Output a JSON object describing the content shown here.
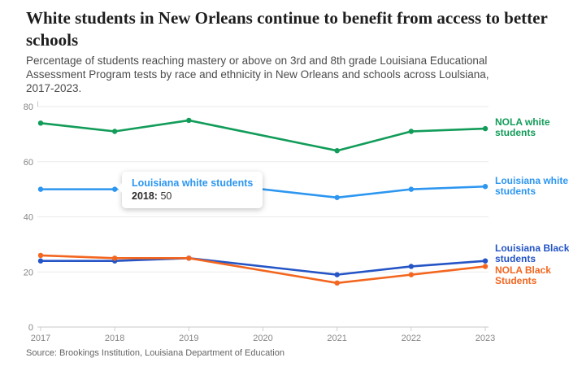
{
  "header": {
    "title": "White students in New Orleans continue to benefit from access to better schools",
    "subtitle": "Percentage of students reaching mastery or above on 3rd and 8th grade Louisiana Educational Assessment Program tests by race and ethnicity in New Orleans and schools across Loulsiana, 2017-2023."
  },
  "tooltip": {
    "series": "Louisiana white students",
    "year": "2018:",
    "value": "50"
  },
  "source": "Source: Brookings Institution, Louisiana Department of Education",
  "chart_data": {
    "type": "line",
    "title": "White students in New Orleans continue to benefit from access to better schools",
    "x": [
      2017,
      2018,
      2019,
      2021,
      2022,
      2023
    ],
    "x_ticks": [
      2017,
      2018,
      2019,
      2020,
      2021,
      2022,
      2023
    ],
    "y_ticks": [
      0,
      20,
      40,
      60,
      80
    ],
    "ylim": [
      0,
      80
    ],
    "grid": true,
    "legend_position": "right-edge-labels",
    "note_2020": "no data points plotted for 2020; lines interpolate across it",
    "series": [
      {
        "name": "NOLA white students",
        "label_lines": [
          "NOLA white",
          "students"
        ],
        "color": "#129c59",
        "values": [
          74,
          71,
          75,
          64,
          71,
          72
        ]
      },
      {
        "name": "Louisiana white students",
        "label_lines": [
          "Louisiana white",
          "students"
        ],
        "color": "#2d96f0",
        "values": [
          50,
          50,
          53,
          47,
          50,
          51
        ]
      },
      {
        "name": "Louisiana Black students",
        "label_lines": [
          "Louisiana Black",
          "students"
        ],
        "color": "#2454c6",
        "values": [
          24,
          24,
          25,
          19,
          22,
          24
        ]
      },
      {
        "name": "NOLA Black Students",
        "label_lines": [
          "NOLA Black",
          "Students"
        ],
        "color": "#f3661f",
        "values": [
          26,
          25,
          25,
          16,
          19,
          22
        ]
      }
    ]
  }
}
